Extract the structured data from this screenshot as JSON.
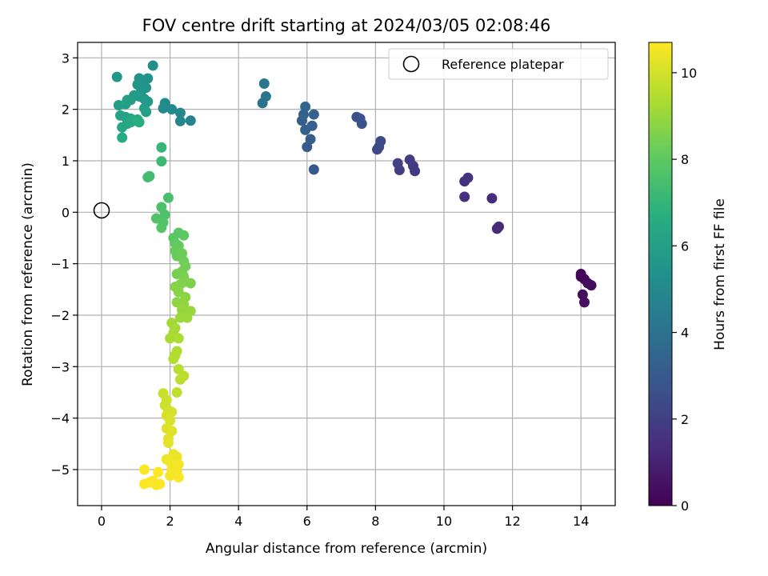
{
  "chart_data": {
    "type": "scatter",
    "title": "FOV centre drift starting at 2024/03/05 02:08:46",
    "xlabel": "Angular distance from reference (arcmin)",
    "ylabel": "Rotation from reference (arcmin)",
    "xlim": [
      -0.7,
      15.0
    ],
    "ylim": [
      -5.7,
      3.3
    ],
    "xticks": [
      0,
      2,
      4,
      6,
      8,
      10,
      12,
      14
    ],
    "xtick_labels": [
      "0",
      "2",
      "4",
      "6",
      "8",
      "10",
      "12",
      "14"
    ],
    "yticks": [
      -5,
      -4,
      -3,
      -2,
      -1,
      0,
      1,
      2,
      3
    ],
    "ytick_labels": [
      "−5",
      "−4",
      "−3",
      "−2",
      "−1",
      "0",
      "1",
      "2",
      "3"
    ],
    "grid": true,
    "legend": {
      "position": "top-right",
      "entries": [
        "Reference platepar"
      ]
    },
    "reference": {
      "x": 0,
      "y": 0
    },
    "colorbar": {
      "label": "Hours from first FF file",
      "min": 0,
      "max": 10.7,
      "ticks": [
        0,
        2,
        4,
        6,
        8,
        10
      ],
      "tick_labels": [
        "0",
        "2",
        "4",
        "6",
        "8",
        "10"
      ],
      "colormap": "viridis"
    },
    "points": [
      [
        14.0,
        -1.2,
        0.1
      ],
      [
        14.1,
        -1.3,
        0.2
      ],
      [
        14.2,
        -1.38,
        0.25
      ],
      [
        14.3,
        -1.42,
        0.3
      ],
      [
        14.05,
        -1.6,
        0.35
      ],
      [
        14.1,
        -1.75,
        0.4
      ],
      [
        14.0,
        -1.25,
        0.15
      ],
      [
        11.6,
        -0.28,
        1.2
      ],
      [
        11.55,
        -0.32,
        1.25
      ],
      [
        11.4,
        0.27,
        1.3
      ],
      [
        10.6,
        0.3,
        1.4
      ],
      [
        10.6,
        0.6,
        1.5
      ],
      [
        10.7,
        0.67,
        1.55
      ],
      [
        9.15,
        0.8,
        1.8
      ],
      [
        9.1,
        0.9,
        1.85
      ],
      [
        9.0,
        1.02,
        1.9
      ],
      [
        8.7,
        0.82,
        2.0
      ],
      [
        8.65,
        0.95,
        2.05
      ],
      [
        8.05,
        1.22,
        2.3
      ],
      [
        8.1,
        1.27,
        2.35
      ],
      [
        8.15,
        1.38,
        2.4
      ],
      [
        7.45,
        1.85,
        2.6
      ],
      [
        7.55,
        1.82,
        2.65
      ],
      [
        7.6,
        1.72,
        2.7
      ],
      [
        6.2,
        0.83,
        3.0
      ],
      [
        6.0,
        1.27,
        3.1
      ],
      [
        6.1,
        1.42,
        3.15
      ],
      [
        6.15,
        1.68,
        3.2
      ],
      [
        5.95,
        1.6,
        3.25
      ],
      [
        5.85,
        1.78,
        3.3
      ],
      [
        5.9,
        1.9,
        3.35
      ],
      [
        6.2,
        1.9,
        3.4
      ],
      [
        5.95,
        2.05,
        3.45
      ],
      [
        4.7,
        2.12,
        4.0
      ],
      [
        4.8,
        2.25,
        4.1
      ],
      [
        4.75,
        2.5,
        4.2
      ],
      [
        2.6,
        1.78,
        4.8
      ],
      [
        2.3,
        1.77,
        4.9
      ],
      [
        2.3,
        1.93,
        4.95
      ],
      [
        2.05,
        2.0,
        5.0
      ],
      [
        1.85,
        2.12,
        5.05
      ],
      [
        1.8,
        2.02,
        5.1
      ],
      [
        1.5,
        2.85,
        5.3
      ],
      [
        1.35,
        2.6,
        5.35
      ],
      [
        1.1,
        2.6,
        5.4
      ],
      [
        1.2,
        2.55,
        5.45
      ],
      [
        1.3,
        2.42,
        5.5
      ],
      [
        1.15,
        2.33,
        5.55
      ],
      [
        1.05,
        2.48,
        5.6
      ],
      [
        1.25,
        2.2,
        5.65
      ],
      [
        1.35,
        2.15,
        5.7
      ],
      [
        1.1,
        2.25,
        5.75
      ],
      [
        0.95,
        2.27,
        5.8
      ],
      [
        0.85,
        2.18,
        5.85
      ],
      [
        0.45,
        2.63,
        5.6
      ],
      [
        0.5,
        2.08,
        5.9
      ],
      [
        0.7,
        2.1,
        5.95
      ],
      [
        0.75,
        2.18,
        6.0
      ],
      [
        1.25,
        2.02,
        6.0
      ],
      [
        1.3,
        1.95,
        6.05
      ],
      [
        0.55,
        1.88,
        6.1
      ],
      [
        0.7,
        1.85,
        6.15
      ],
      [
        0.85,
        1.82,
        6.2
      ],
      [
        0.95,
        1.78,
        6.25
      ],
      [
        1.05,
        1.8,
        6.3
      ],
      [
        0.6,
        1.65,
        6.3
      ],
      [
        0.75,
        1.72,
        6.35
      ],
      [
        0.85,
        1.75,
        6.4
      ],
      [
        0.9,
        1.8,
        6.45
      ],
      [
        1.1,
        1.75,
        6.5
      ],
      [
        0.6,
        1.45,
        6.55
      ],
      [
        1.05,
        1.77,
        6.6
      ],
      [
        1.75,
        1.26,
        7.1
      ],
      [
        1.75,
        0.99,
        7.2
      ],
      [
        1.4,
        0.7,
        7.3
      ],
      [
        1.35,
        0.68,
        7.35
      ],
      [
        1.95,
        0.28,
        7.5
      ],
      [
        1.75,
        0.1,
        7.6
      ],
      [
        1.85,
        -0.05,
        7.65
      ],
      [
        1.6,
        -0.12,
        7.7
      ],
      [
        1.8,
        -0.2,
        7.75
      ],
      [
        1.75,
        -0.3,
        7.8
      ],
      [
        2.1,
        -0.5,
        7.9
      ],
      [
        2.25,
        -0.4,
        7.95
      ],
      [
        2.4,
        -0.45,
        8.0
      ],
      [
        2.15,
        -0.6,
        8.05
      ],
      [
        2.25,
        -0.65,
        8.1
      ],
      [
        2.15,
        -0.75,
        8.15
      ],
      [
        2.2,
        -0.85,
        8.2
      ],
      [
        2.35,
        -0.8,
        8.25
      ],
      [
        2.4,
        -0.95,
        8.3
      ],
      [
        2.45,
        -1.05,
        8.35
      ],
      [
        2.35,
        -1.15,
        8.4
      ],
      [
        2.2,
        -1.2,
        8.45
      ],
      [
        2.4,
        -1.25,
        8.5
      ],
      [
        2.6,
        -1.38,
        8.55
      ],
      [
        2.45,
        -1.35,
        8.6
      ],
      [
        2.3,
        -1.4,
        8.65
      ],
      [
        2.15,
        -1.45,
        8.7
      ],
      [
        2.25,
        -1.55,
        8.75
      ],
      [
        2.45,
        -1.65,
        8.8
      ],
      [
        2.2,
        -1.75,
        8.85
      ],
      [
        2.4,
        -1.8,
        8.9
      ],
      [
        2.35,
        -1.9,
        8.95
      ],
      [
        2.6,
        -1.92,
        9.0
      ],
      [
        2.5,
        -2.05,
        9.05
      ],
      [
        2.3,
        -2.05,
        9.1
      ],
      [
        2.05,
        -2.15,
        9.15
      ],
      [
        2.15,
        -2.25,
        9.2
      ],
      [
        2.1,
        -2.35,
        9.25
      ],
      [
        2.0,
        -2.45,
        9.3
      ],
      [
        2.25,
        -2.45,
        9.35
      ],
      [
        2.2,
        -2.7,
        9.4
      ],
      [
        2.15,
        -2.78,
        9.45
      ],
      [
        2.1,
        -2.85,
        9.5
      ],
      [
        2.25,
        -3.05,
        9.55
      ],
      [
        2.4,
        -3.18,
        9.6
      ],
      [
        2.3,
        -3.25,
        9.65
      ],
      [
        2.2,
        -3.5,
        9.7
      ],
      [
        1.8,
        -3.52,
        9.8
      ],
      [
        1.9,
        -3.65,
        9.85
      ],
      [
        1.85,
        -3.75,
        9.9
      ],
      [
        1.95,
        -3.85,
        9.95
      ],
      [
        2.05,
        -3.88,
        10.0
      ],
      [
        1.9,
        -3.95,
        10.05
      ],
      [
        2.0,
        -4.05,
        10.1
      ],
      [
        1.9,
        -4.2,
        10.15
      ],
      [
        2.05,
        -4.25,
        10.2
      ],
      [
        1.95,
        -4.4,
        10.25
      ],
      [
        1.95,
        -4.48,
        10.3
      ],
      [
        2.1,
        -4.7,
        10.35
      ],
      [
        2.2,
        -4.75,
        10.4
      ],
      [
        1.9,
        -4.8,
        10.45
      ],
      [
        2.0,
        -4.85,
        10.5
      ],
      [
        2.25,
        -4.9,
        10.55
      ],
      [
        2.05,
        -5.0,
        10.55
      ],
      [
        2.2,
        -5.05,
        10.6
      ],
      [
        2.0,
        -5.12,
        10.6
      ],
      [
        2.25,
        -5.15,
        10.65
      ],
      [
        1.25,
        -5.0,
        10.65
      ],
      [
        1.65,
        -5.05,
        10.7
      ],
      [
        1.5,
        -5.22,
        10.7
      ],
      [
        1.4,
        -5.25,
        10.7
      ],
      [
        1.25,
        -5.28,
        10.7
      ],
      [
        1.7,
        -5.28,
        10.7
      ],
      [
        1.6,
        -5.3,
        10.7
      ]
    ]
  }
}
